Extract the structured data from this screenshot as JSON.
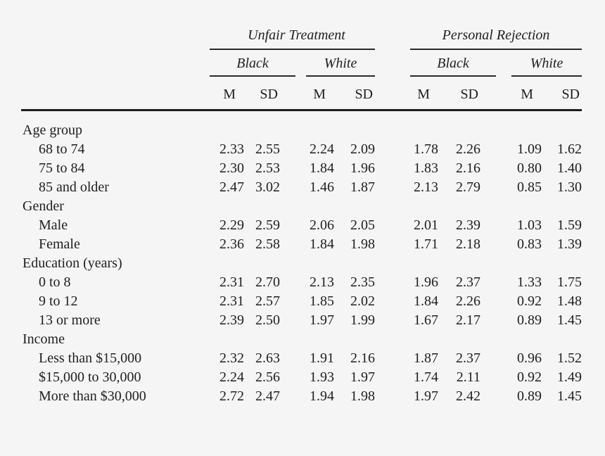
{
  "table": {
    "groups": [
      {
        "label": "Unfair Treatment",
        "subgroups": [
          {
            "label": "Black"
          },
          {
            "label": "White"
          }
        ]
      },
      {
        "label": "Personal Rejection",
        "subgroups": [
          {
            "label": "Black"
          },
          {
            "label": "White"
          }
        ]
      }
    ],
    "stat_headers": [
      "M",
      "SD"
    ],
    "sections": [
      {
        "label": "Age group",
        "rows": [
          {
            "label": "68 to 74",
            "values": [
              "2.33",
              "2.55",
              "2.24",
              "2.09",
              "1.78",
              "2.26",
              "1.09",
              "1.62"
            ]
          },
          {
            "label": "75 to 84",
            "values": [
              "2.30",
              "2.53",
              "1.84",
              "1.96",
              "1.83",
              "2.16",
              "0.80",
              "1.40"
            ]
          },
          {
            "label": "85 and older",
            "values": [
              "2.47",
              "3.02",
              "1.46",
              "1.87",
              "2.13",
              "2.79",
              "0.85",
              "1.30"
            ]
          }
        ]
      },
      {
        "label": "Gender",
        "rows": [
          {
            "label": "Male",
            "values": [
              "2.29",
              "2.59",
              "2.06",
              "2.05",
              "2.01",
              "2.39",
              "1.03",
              "1.59"
            ]
          },
          {
            "label": "Female",
            "values": [
              "2.36",
              "2.58",
              "1.84",
              "1.98",
              "1.71",
              "2.18",
              "0.83",
              "1.39"
            ]
          }
        ]
      },
      {
        "label": "Education (years)",
        "rows": [
          {
            "label": "0 to 8",
            "values": [
              "2.31",
              "2.70",
              "2.13",
              "2.35",
              "1.96",
              "2.37",
              "1.33",
              "1.75"
            ]
          },
          {
            "label": "9 to 12",
            "values": [
              "2.31",
              "2.57",
              "1.85",
              "2.02",
              "1.84",
              "2.26",
              "0.92",
              "1.48"
            ]
          },
          {
            "label": "13 or more",
            "values": [
              "2.39",
              "2.50",
              "1.97",
              "1.99",
              "1.67",
              "2.17",
              "0.89",
              "1.45"
            ]
          }
        ]
      },
      {
        "label": "Income",
        "rows": [
          {
            "label": "Less than $15,000",
            "values": [
              "2.32",
              "2.63",
              "1.91",
              "2.16",
              "1.87",
              "2.37",
              "0.96",
              "1.52"
            ]
          },
          {
            "label": "$15,000 to 30,000",
            "values": [
              "2.24",
              "2.56",
              "1.93",
              "1.97",
              "1.74",
              "2.11",
              "0.92",
              "1.49"
            ]
          },
          {
            "label": "More than $30,000",
            "values": [
              "2.72",
              "2.47",
              "1.94",
              "1.98",
              "1.97",
              "2.42",
              "0.89",
              "1.45"
            ]
          }
        ]
      }
    ]
  },
  "colors": {
    "background": "#f5f5f6",
    "text": "#1f1f1f",
    "rule": "#1d1d1d"
  }
}
